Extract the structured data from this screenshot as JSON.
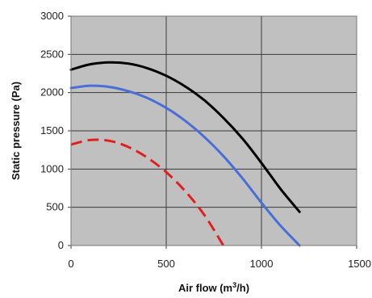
{
  "chart_data": {
    "type": "line",
    "xlabel": "Air flow (m",
    "xlabel_sup": "3",
    "xlabel_tail": "/h)",
    "ylabel": "Static pressure (Pa)",
    "xlim": [
      0,
      1500
    ],
    "ylim": [
      0,
      3000
    ],
    "xticks": [
      "0",
      "500",
      "1000",
      "1500"
    ],
    "yticks": [
      "0",
      "500",
      "1000",
      "1500",
      "2000",
      "2500",
      "3000"
    ],
    "grid": true,
    "plot_background": "#c0c0c0",
    "series": [
      {
        "color": "#000000",
        "dashed": false,
        "x": [
          0,
          100,
          200,
          300,
          400,
          500,
          600,
          700,
          800,
          900,
          1000,
          1100,
          1200
        ],
        "y": [
          2300,
          2370,
          2395,
          2380,
          2320,
          2220,
          2080,
          1900,
          1670,
          1400,
          1080,
          740,
          440
        ]
      },
      {
        "color": "#4a6ed8",
        "dashed": false,
        "x": [
          0,
          100,
          200,
          300,
          400,
          500,
          600,
          700,
          800,
          900,
          1000,
          1100,
          1200
        ],
        "y": [
          2060,
          2090,
          2075,
          2020,
          1930,
          1800,
          1630,
          1420,
          1170,
          880,
          560,
          260,
          0
        ]
      },
      {
        "color": "#e02020",
        "dashed": true,
        "x": [
          0,
          100,
          200,
          300,
          400,
          500,
          600,
          700,
          800
        ],
        "y": [
          1320,
          1380,
          1370,
          1290,
          1150,
          960,
          710,
          400,
          0
        ]
      }
    ]
  }
}
